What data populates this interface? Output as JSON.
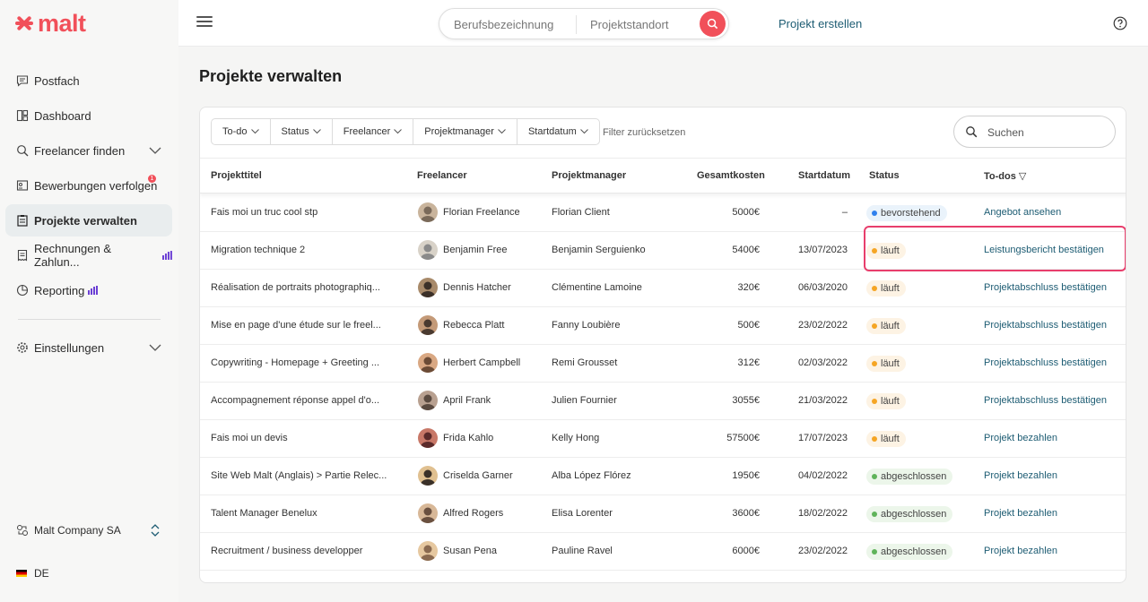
{
  "brand": {
    "name": "malt",
    "color": "#f1505a"
  },
  "sidebar": {
    "items": [
      {
        "label": "Postfach",
        "icon": "chat-icon"
      },
      {
        "label": "Dashboard",
        "icon": "dashboard-icon"
      },
      {
        "label": "Freelancer finden",
        "icon": "search-people-icon"
      },
      {
        "label": "Bewerbungen verfolgen",
        "icon": "applications-icon",
        "badge": "1"
      },
      {
        "label": "Projekte verwalten",
        "icon": "clipboard-icon",
        "active": true
      },
      {
        "label": "Rechnungen & Zahlun...",
        "icon": "invoice-icon"
      },
      {
        "label": "Reporting",
        "icon": "reporting-icon"
      },
      {
        "label": "Einstellungen",
        "icon": "gear-icon"
      }
    ],
    "company": "Malt Company SA",
    "language": "DE"
  },
  "topbar": {
    "search_job_placeholder": "Berufsbezeichnung",
    "search_location_placeholder": "Projektstandort",
    "create_project": "Projekt erstellen"
  },
  "page": {
    "title": "Projekte verwalten"
  },
  "filters": {
    "items": [
      "To-do",
      "Status",
      "Freelancer",
      "Projektmanager",
      "Startdatum"
    ],
    "reset": "Filter zurücksetzen",
    "search_placeholder": "Suchen"
  },
  "table": {
    "headers": [
      "Projekttitel",
      "Freelancer",
      "Projektmanager",
      "Gesamtkosten",
      "Startdatum",
      "Status",
      "To-dos ▽"
    ],
    "rows": [
      {
        "title": "Fais moi un truc cool stp",
        "freelancer": "Florian Freelance",
        "manager": "Florian Client",
        "cost": "5000€",
        "start": "–",
        "status": "bevorstehend",
        "status_color": "#2f80ed",
        "status_bg": "#eaf3fb",
        "todo": "Angebot ansehen"
      },
      {
        "title": "Migration technique 2",
        "freelancer": "Benjamin Free",
        "manager": "Benjamin Serguienko",
        "cost": "5400€",
        "start": "13/07/2023",
        "status": "läuft",
        "status_color": "#f5a524",
        "status_bg": "#fdf3e4",
        "todo": "Leistungsbericht bestätigen"
      },
      {
        "title": "Réalisation de portraits photographiq...",
        "freelancer": "Dennis Hatcher",
        "manager": "Clémentine Lamoine",
        "cost": "320€",
        "start": "06/03/2020",
        "status": "läuft",
        "status_color": "#f5a524",
        "status_bg": "#fdf3e4",
        "todo": "Projektabschluss bestätigen"
      },
      {
        "title": "Mise en page d'une étude sur le freel...",
        "freelancer": "Rebecca Platt",
        "manager": "Fanny Loubière",
        "cost": "500€",
        "start": "23/02/2022",
        "status": "läuft",
        "status_color": "#f5a524",
        "status_bg": "#fdf3e4",
        "todo": "Projektabschluss bestätigen"
      },
      {
        "title": "Copywriting - Homepage + Greeting ...",
        "freelancer": "Herbert Campbell",
        "manager": "Remi Grousset",
        "cost": "312€",
        "start": "02/03/2022",
        "status": "läuft",
        "status_color": "#f5a524",
        "status_bg": "#fdf3e4",
        "todo": "Projektabschluss bestätigen"
      },
      {
        "title": "Accompagnement réponse appel d'o...",
        "freelancer": "April Frank",
        "manager": "Julien Fournier",
        "cost": "3055€",
        "start": "21/03/2022",
        "status": "läuft",
        "status_color": "#f5a524",
        "status_bg": "#fdf3e4",
        "todo": "Projektabschluss bestätigen"
      },
      {
        "title": "Fais moi un devis",
        "freelancer": "Frida Kahlo",
        "manager": "Kelly Hong",
        "cost": "57500€",
        "start": "17/07/2023",
        "status": "läuft",
        "status_color": "#f5a524",
        "status_bg": "#fdf3e4",
        "todo": "Projekt bezahlen"
      },
      {
        "title": "Site Web Malt (Anglais) > Partie Relec...",
        "freelancer": "Criselda Garner",
        "manager": "Alba López Flórez",
        "cost": "1950€",
        "start": "04/02/2022",
        "status": "abgeschlossen",
        "status_color": "#5fb35a",
        "status_bg": "#ecf6ea",
        "todo": "Projekt bezahlen"
      },
      {
        "title": "Talent Manager Benelux",
        "freelancer": "Alfred Rogers",
        "manager": "Elisa Lorenter",
        "cost": "3600€",
        "start": "18/02/2022",
        "status": "abgeschlossen",
        "status_color": "#5fb35a",
        "status_bg": "#ecf6ea",
        "todo": "Projekt bezahlen"
      },
      {
        "title": "Recruitment / business developper",
        "freelancer": "Susan Pena",
        "manager": "Pauline Ravel",
        "cost": "6000€",
        "start": "23/02/2022",
        "status": "abgeschlossen",
        "status_color": "#5fb35a",
        "status_bg": "#ecf6ea",
        "todo": "Projekt bezahlen"
      }
    ]
  }
}
